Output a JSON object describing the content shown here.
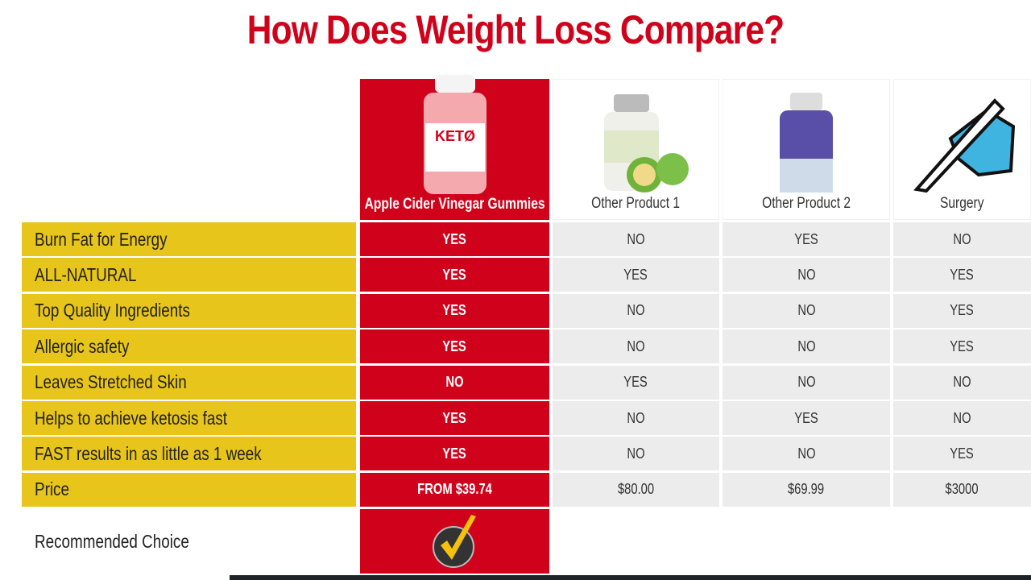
{
  "title": "How Does Weight Loss Compare?",
  "products": [
    {
      "name": "Apple Cider Vinegar Gummies",
      "icon": "keto-gummies-bottle-icon"
    },
    {
      "name": "Other Product 1",
      "icon": "garcinia-bottle-icon"
    },
    {
      "name": "Other Product 2",
      "icon": "keto-pills-bottle-icon"
    },
    {
      "name": "Surgery",
      "icon": "scalpel-hand-icon"
    }
  ],
  "rows": [
    {
      "label": "Burn Fat for Energy",
      "values": [
        "YES",
        "NO",
        "YES",
        "NO"
      ]
    },
    {
      "label": "ALL-NATURAL",
      "values": [
        "YES",
        "YES",
        "NO",
        "YES"
      ]
    },
    {
      "label": "Top Quality Ingredients",
      "values": [
        "YES",
        "NO",
        "NO",
        "YES"
      ]
    },
    {
      "label": "Allergic safety",
      "values": [
        "YES",
        "NO",
        "NO",
        "YES"
      ]
    },
    {
      "label": "Leaves Stretched Skin",
      "values": [
        "NO",
        "YES",
        "NO",
        "NO"
      ]
    },
    {
      "label": "Helps to achieve ketosis fast",
      "values": [
        "YES",
        "NO",
        "YES",
        "NO"
      ]
    },
    {
      "label": "FAST results in as little as 1 week",
      "values": [
        "YES",
        "NO",
        "NO",
        "YES"
      ]
    },
    {
      "label": "Price",
      "values": [
        "FROM $39.74",
        "$80.00",
        "$69.99",
        "$3000"
      ]
    }
  ],
  "recommended": {
    "label": "Recommended Choice",
    "icon": "checkmark-badge-icon"
  },
  "colors": {
    "red": "#d0021b",
    "yellow": "#e8c51a",
    "grey": "#ececec"
  }
}
